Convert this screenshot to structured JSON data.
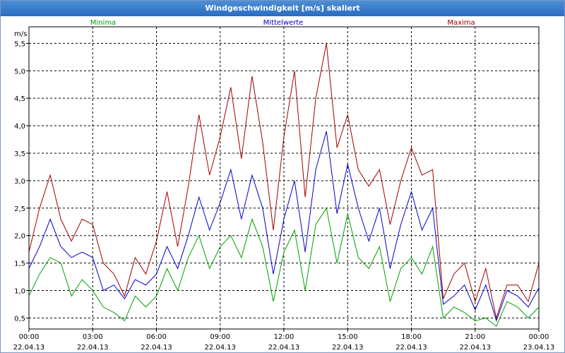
{
  "window": {
    "title": "Windgeschwindigkeit [m/s] skaliert"
  },
  "chart_data": {
    "type": "line",
    "title": "Windgeschwindigkeit [m/s] skaliert",
    "ylabel": "m/s",
    "ylim": [
      0.3,
      5.8
    ],
    "xlim": [
      "22.04.13 00:00",
      "23.04.13 00:00"
    ],
    "y_ticks": [
      "5,5",
      "5,0",
      "4,5",
      "4,0",
      "3,5",
      "3,0",
      "2,5",
      "2,0",
      "1,5",
      "1,0",
      "0,5"
    ],
    "y_tick_values": [
      5.5,
      5.0,
      4.5,
      4.0,
      3.5,
      3.0,
      2.5,
      2.0,
      1.5,
      1.0,
      0.5
    ],
    "x_ticks": [
      {
        "time": "00:00",
        "date": "22.04.13"
      },
      {
        "time": "03:00",
        "date": "22.04.13"
      },
      {
        "time": "06:00",
        "date": "22.04.13"
      },
      {
        "time": "09:00",
        "date": "22.04.13"
      },
      {
        "time": "12:00",
        "date": "22.04.13"
      },
      {
        "time": "15:00",
        "date": "22.04.13"
      },
      {
        "time": "18:00",
        "date": "22.04.13"
      },
      {
        "time": "21:00",
        "date": "22.04.13"
      },
      {
        "time": "00:00",
        "date": "23.04.13"
      }
    ],
    "x_tick_hours": [
      0,
      3,
      6,
      9,
      12,
      15,
      18,
      21,
      24
    ],
    "grid": true,
    "legend": "top",
    "x_hours": [
      0.0,
      0.5,
      1.0,
      1.5,
      2.0,
      2.5,
      3.0,
      3.5,
      4.0,
      4.5,
      5.0,
      5.5,
      6.0,
      6.5,
      7.0,
      7.5,
      8.0,
      8.5,
      9.0,
      9.5,
      10.0,
      10.5,
      11.0,
      11.5,
      12.0,
      12.5,
      13.0,
      13.5,
      14.0,
      14.5,
      15.0,
      15.5,
      16.0,
      16.5,
      17.0,
      17.5,
      18.0,
      18.5,
      19.0,
      19.5,
      20.0,
      20.5,
      21.0,
      21.5,
      22.0,
      22.5,
      23.0,
      23.5,
      24.0
    ],
    "series": [
      {
        "name": "Minima",
        "color": "#00a000",
        "values": [
          0.9,
          1.3,
          1.6,
          1.5,
          0.9,
          1.2,
          1.0,
          0.7,
          0.6,
          0.45,
          0.9,
          0.7,
          0.9,
          1.4,
          1.0,
          1.6,
          2.0,
          1.4,
          1.8,
          2.0,
          1.6,
          2.3,
          1.8,
          0.8,
          1.7,
          2.1,
          1.0,
          2.2,
          2.5,
          1.5,
          2.4,
          1.6,
          1.4,
          1.8,
          0.8,
          1.4,
          1.6,
          1.3,
          1.8,
          0.5,
          0.7,
          0.6,
          0.45,
          0.5,
          0.35,
          0.8,
          0.7,
          0.5,
          0.7
        ]
      },
      {
        "name": "Mittelwerte",
        "color": "#0000c8",
        "values": [
          1.4,
          1.8,
          2.3,
          1.8,
          1.6,
          1.7,
          1.6,
          1.0,
          1.1,
          0.85,
          1.2,
          1.1,
          1.3,
          1.8,
          1.4,
          2.0,
          2.7,
          2.1,
          2.6,
          3.2,
          2.3,
          3.1,
          2.5,
          1.3,
          2.3,
          3.0,
          1.7,
          3.2,
          3.9,
          2.4,
          3.3,
          2.5,
          1.9,
          2.5,
          1.4,
          2.2,
          2.8,
          2.1,
          2.5,
          0.75,
          0.9,
          1.1,
          0.65,
          1.1,
          0.45,
          1.0,
          0.9,
          0.7,
          1.05
        ]
      },
      {
        "name": "Maxima",
        "color": "#a00000",
        "values": [
          1.7,
          2.5,
          3.1,
          2.3,
          1.9,
          2.3,
          2.2,
          1.5,
          1.3,
          0.9,
          1.6,
          1.3,
          1.9,
          2.8,
          1.8,
          2.9,
          4.2,
          3.1,
          3.8,
          4.7,
          3.4,
          4.9,
          3.7,
          2.1,
          3.8,
          5.0,
          2.7,
          4.5,
          5.5,
          3.6,
          4.2,
          3.2,
          2.9,
          3.2,
          2.2,
          3.0,
          3.6,
          3.1,
          3.2,
          0.85,
          1.3,
          1.5,
          0.8,
          1.4,
          0.5,
          1.1,
          1.1,
          0.8,
          1.5
        ]
      }
    ]
  }
}
